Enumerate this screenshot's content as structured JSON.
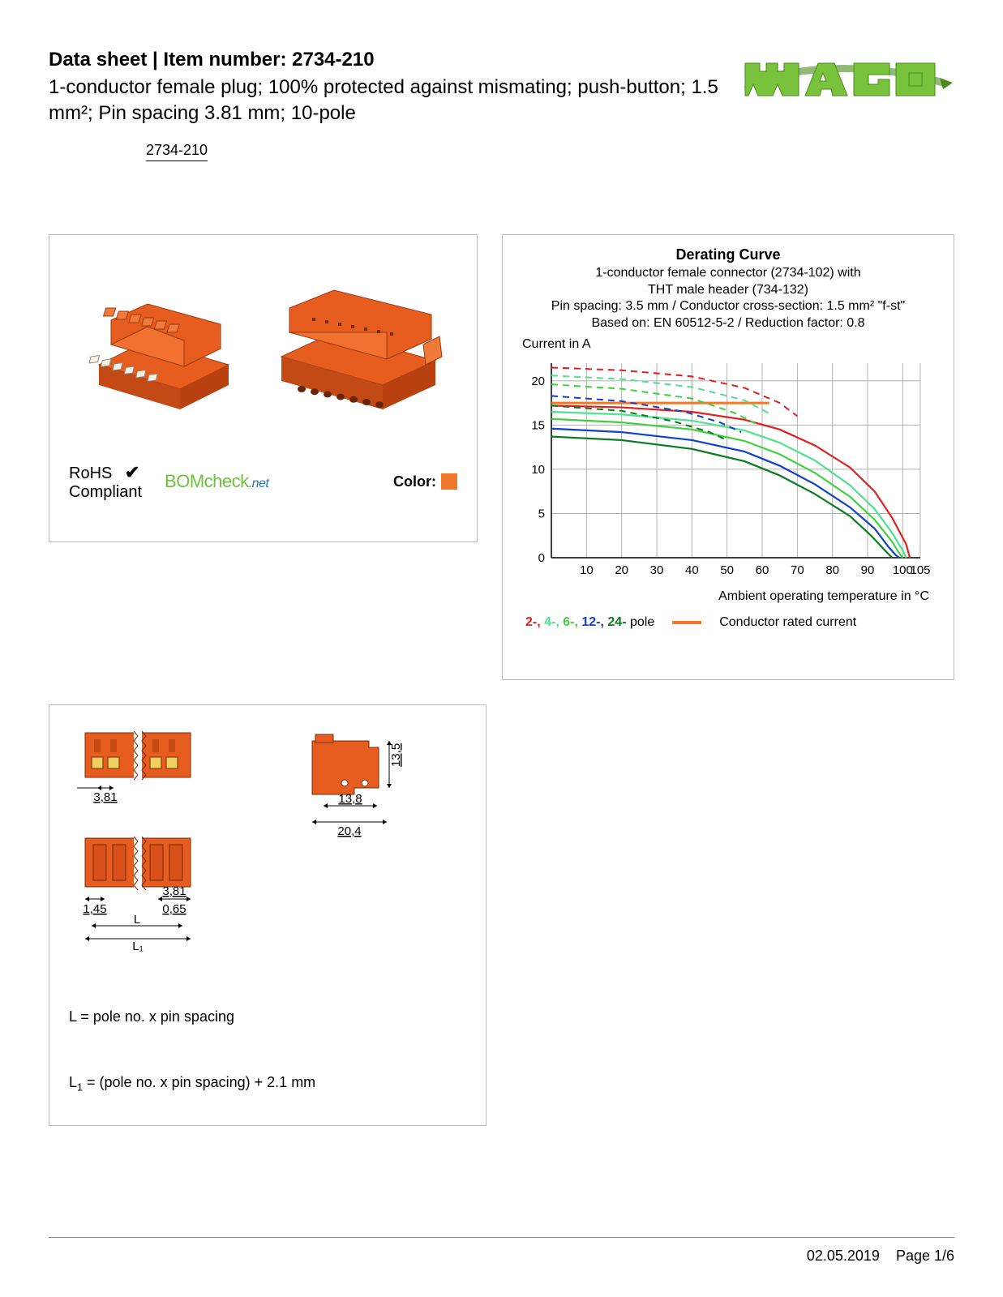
{
  "header": {
    "title": "Data sheet  |  Item number: 2734-210",
    "subtitle": "1-conductor female plug; 100% protected against mismating; push-button; 1.5 mm²; Pin spacing 3.81 mm; 10-pole",
    "code": "2734-210"
  },
  "logo": {
    "color": "#78c23c",
    "shadow": "#4a8a1e"
  },
  "productPanel": {
    "connectorColor": "#e75d1f",
    "highlight": "#f0d060",
    "rohs_line1": "RoHS",
    "rohs_line2": "Compliant",
    "bomcheck_main": "BOMcheck",
    "bomcheck_suffix": ".net",
    "bomcheck_color": "#6fbf3f",
    "bomcheck_net_color": "#2a6fb0",
    "color_label": "Color:",
    "swatch_color": "#f07828"
  },
  "chart": {
    "title": "Derating Curve",
    "sub1": "1-conductor female connector (2734-102) with",
    "sub2": "THT male header (734-132)",
    "sub3": "Pin spacing: 3.5 mm / Conductor cross-section: 1.5 mm² \"f-st\"",
    "sub4": "Based on: EN 60512-5-2 / Reduction factor: 0.8",
    "y_label": "Current in A",
    "x_label": "Ambient operating temperature in °C",
    "x_min": 0,
    "x_max": 105,
    "y_min": 0,
    "y_max": 22,
    "x_ticks": [
      10,
      20,
      30,
      40,
      50,
      60,
      70,
      80,
      90,
      100,
      105
    ],
    "y_ticks": [
      0,
      5,
      10,
      15,
      20
    ],
    "grid_color": "#b0b0b0",
    "axis_color": "#000000",
    "plot_bg": "#ffffff",
    "rated_color": "#f07828",
    "rated_y": 17.5,
    "rated_x_end": 62,
    "curves": [
      {
        "name": "2-pole",
        "color": "#e02020",
        "solid": [
          [
            0,
            17.2
          ],
          [
            20,
            17.0
          ],
          [
            40,
            16.5
          ],
          [
            55,
            15.6
          ],
          [
            65,
            14.5
          ],
          [
            75,
            12.7
          ],
          [
            85,
            10.2
          ],
          [
            92,
            7.5
          ],
          [
            97,
            4.5
          ],
          [
            101,
            1.5
          ],
          [
            102,
            0
          ]
        ],
        "dashed": [
          [
            0,
            21.5
          ],
          [
            20,
            21.2
          ],
          [
            40,
            20.5
          ],
          [
            55,
            19.2
          ],
          [
            65,
            17.5
          ],
          [
            70,
            16.0
          ]
        ]
      },
      {
        "name": "4-pole",
        "color": "#50e090",
        "solid": [
          [
            0,
            16.5
          ],
          [
            20,
            16.2
          ],
          [
            40,
            15.5
          ],
          [
            55,
            14.4
          ],
          [
            65,
            13.0
          ],
          [
            75,
            11.0
          ],
          [
            85,
            8.2
          ],
          [
            92,
            5.5
          ],
          [
            97,
            2.8
          ],
          [
            100,
            0.8
          ],
          [
            101,
            0
          ]
        ],
        "dashed": [
          [
            0,
            20.6
          ],
          [
            20,
            20.2
          ],
          [
            40,
            19.3
          ],
          [
            55,
            17.8
          ],
          [
            62,
            16.3
          ]
        ]
      },
      {
        "name": "6-pole",
        "color": "#40d040",
        "solid": [
          [
            0,
            15.7
          ],
          [
            20,
            15.3
          ],
          [
            40,
            14.5
          ],
          [
            55,
            13.2
          ],
          [
            65,
            11.7
          ],
          [
            75,
            9.6
          ],
          [
            85,
            6.9
          ],
          [
            92,
            4.3
          ],
          [
            97,
            1.8
          ],
          [
            99,
            0.5
          ],
          [
            100,
            0
          ]
        ],
        "dashed": [
          [
            0,
            19.6
          ],
          [
            20,
            19.1
          ],
          [
            40,
            18.0
          ],
          [
            52,
            16.4
          ],
          [
            58,
            15.2
          ]
        ]
      },
      {
        "name": "12-pole",
        "color": "#1040d0",
        "solid": [
          [
            0,
            14.6
          ],
          [
            20,
            14.2
          ],
          [
            40,
            13.3
          ],
          [
            55,
            12.0
          ],
          [
            65,
            10.4
          ],
          [
            75,
            8.3
          ],
          [
            85,
            5.7
          ],
          [
            92,
            3.3
          ],
          [
            96,
            1.2
          ],
          [
            98,
            0.3
          ],
          [
            99,
            0
          ]
        ],
        "dashed": [
          [
            0,
            18.3
          ],
          [
            20,
            17.7
          ],
          [
            38,
            16.5
          ],
          [
            48,
            15.3
          ],
          [
            54,
            14.2
          ]
        ]
      },
      {
        "name": "24-pole",
        "color": "#0a7a20",
        "solid": [
          [
            0,
            13.7
          ],
          [
            20,
            13.3
          ],
          [
            40,
            12.3
          ],
          [
            55,
            10.9
          ],
          [
            65,
            9.3
          ],
          [
            75,
            7.2
          ],
          [
            85,
            4.7
          ],
          [
            91,
            2.5
          ],
          [
            95,
            0.8
          ],
          [
            97,
            0
          ]
        ],
        "dashed": [
          [
            0,
            17.2
          ],
          [
            20,
            16.6
          ],
          [
            35,
            15.4
          ],
          [
            45,
            14.2
          ],
          [
            50,
            13.3
          ]
        ]
      }
    ],
    "legend_poles": "2-, 4-, 6-, 12-, 24-  pole",
    "legend_pole_colors": [
      "#e02020",
      "#50e090",
      "#40d040",
      "#1040d0",
      "#0a7a20"
    ],
    "legend_rated": "Conductor rated current"
  },
  "dims": {
    "color": "#e75d1f",
    "accent": "#f0d060",
    "d_381": "3,81",
    "d_138": "13,8",
    "d_204": "20,4",
    "d_135": "13,5",
    "d_145": "1,45",
    "d_381b": "3,81",
    "d_065": "0,65",
    "L": "L",
    "L1": "L₁",
    "formula1": "L = pole no. x pin spacing",
    "formula2_pre": "L",
    "formula2_sub": "1",
    "formula2_post": " = (pole no. x pin spacing) + 2.1 mm"
  },
  "footer": {
    "date": "02.05.2019",
    "page": "Page 1/6"
  }
}
